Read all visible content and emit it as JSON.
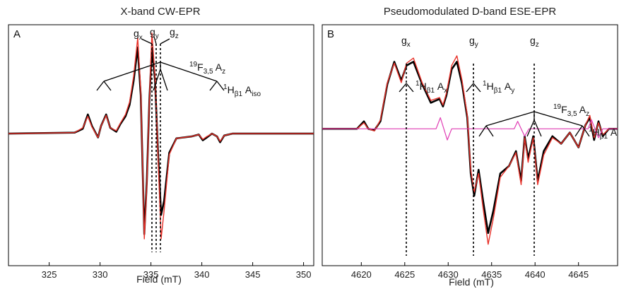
{
  "chart_data": [
    {
      "type": "line",
      "panel": "A",
      "title": "X-band CW-EPR",
      "xlabel": "Field (mT)",
      "ylabel": "",
      "xlim": [
        321,
        351
      ],
      "ylim": [
        -1.35,
        1.1
      ],
      "xticks": [
        325,
        330,
        335,
        340,
        345,
        350
      ],
      "grid": false,
      "series": [
        {
          "color": "#000000",
          "x": [
            321,
            327.5,
            328.3,
            328.8,
            329.2,
            329.8,
            330.1,
            330.6,
            331.0,
            331.6,
            332.0,
            332.5,
            332.9,
            333.3,
            333.7,
            334.0,
            334.35,
            334.6,
            334.85,
            335.1,
            335.4,
            335.7,
            336.0,
            336.3,
            336.8,
            337.5,
            339.0,
            339.7,
            340.1,
            340.5,
            341.0,
            341.5,
            341.8,
            342.2,
            343.0,
            351
          ],
          "y": [
            0,
            0.01,
            0.05,
            0.2,
            0.08,
            -0.04,
            0.08,
            0.2,
            0.06,
            0.02,
            0.1,
            0.18,
            0.3,
            0.55,
            0.9,
            0.4,
            -1.05,
            -0.5,
            0.35,
            0.9,
            0.55,
            -0.2,
            -0.85,
            -0.7,
            -0.2,
            -0.05,
            -0.03,
            -0.01,
            -0.07,
            -0.04,
            0.0,
            -0.03,
            -0.09,
            -0.02,
            0.0,
            0.0
          ]
        },
        {
          "color": "#e8322a",
          "x": [
            321,
            327.5,
            328.3,
            328.8,
            329.2,
            329.8,
            330.1,
            330.6,
            331.0,
            331.6,
            332.0,
            332.5,
            332.9,
            333.3,
            333.7,
            334.0,
            334.35,
            334.6,
            334.85,
            335.1,
            335.4,
            335.7,
            336.0,
            336.3,
            336.8,
            337.5,
            339.0,
            339.7,
            340.1,
            340.5,
            341.0,
            341.5,
            341.8,
            342.2,
            343.0,
            351
          ],
          "y": [
            0,
            0.01,
            0.06,
            0.18,
            0.07,
            -0.04,
            0.08,
            0.19,
            0.06,
            0.03,
            0.11,
            0.2,
            0.33,
            0.6,
            1.0,
            0.45,
            -1.1,
            -0.55,
            0.35,
            1.05,
            0.6,
            -0.25,
            -1.1,
            -0.8,
            -0.22,
            -0.05,
            -0.03,
            -0.01,
            -0.06,
            -0.03,
            0.0,
            -0.03,
            -0.08,
            -0.02,
            0.0,
            0.0
          ]
        }
      ]
    },
    {
      "type": "line",
      "panel": "B",
      "title": "Pseudomodulated D-band ESE-EPR",
      "xlabel": "Field (mT)",
      "ylabel": "",
      "xlim": [
        4615.5,
        4649.5
      ],
      "ylim": [
        -1.8,
        1.35
      ],
      "xticks": [
        4620,
        4625,
        4630,
        4635,
        4640,
        4645
      ],
      "grid": false,
      "series": [
        {
          "color": "#000000",
          "x": [
            4615.5,
            4619.5,
            4620.3,
            4620.8,
            4621.5,
            4622.2,
            4623.0,
            4623.8,
            4624.6,
            4625.2,
            4626.0,
            4627.0,
            4628.0,
            4629.0,
            4629.4,
            4629.8,
            4630.4,
            4631.0,
            4631.6,
            4632.2,
            4632.6,
            4633.0,
            4633.5,
            4634.0,
            4634.6,
            4635.2,
            4636.0,
            4637.0,
            4637.8,
            4638.4,
            4638.8,
            4639.2,
            4639.8,
            4640.3,
            4641.0,
            4642.0,
            4643.0,
            4644.0,
            4645.0,
            4645.8,
            4646.3,
            4646.8,
            4647.3,
            4647.8,
            4648.5,
            4649.5
          ],
          "y": [
            0,
            0.0,
            0.1,
            0.0,
            -0.02,
            0.1,
            0.6,
            0.9,
            0.65,
            0.85,
            0.9,
            0.6,
            0.35,
            0.4,
            0.3,
            0.45,
            0.8,
            0.9,
            0.6,
            0.15,
            -0.6,
            -0.9,
            -0.55,
            -0.95,
            -1.4,
            -1.1,
            -0.6,
            -0.5,
            -0.3,
            -0.7,
            -0.1,
            -0.4,
            -0.1,
            -0.7,
            -0.3,
            -0.1,
            -0.2,
            -0.05,
            -0.25,
            0.05,
            0.15,
            -0.15,
            0.1,
            -0.1,
            0.0,
            0.0
          ]
        },
        {
          "color": "#e8322a",
          "x": [
            4615.5,
            4619.5,
            4620.3,
            4620.8,
            4621.5,
            4622.2,
            4623.0,
            4623.8,
            4624.6,
            4625.2,
            4626.0,
            4627.0,
            4628.0,
            4629.0,
            4629.4,
            4629.8,
            4630.4,
            4631.0,
            4631.6,
            4632.2,
            4632.6,
            4633.0,
            4633.5,
            4634.0,
            4634.6,
            4635.2,
            4636.0,
            4637.0,
            4637.8,
            4638.4,
            4638.8,
            4639.2,
            4639.8,
            4640.3,
            4641.0,
            4642.0,
            4643.0,
            4644.0,
            4645.0,
            4645.8,
            4646.3,
            4646.8,
            4647.3,
            4647.8,
            4648.5,
            4649.5
          ],
          "y": [
            0,
            0.0,
            0.08,
            0.0,
            -0.03,
            0.12,
            0.62,
            0.88,
            0.62,
            0.88,
            0.95,
            0.62,
            0.38,
            0.42,
            0.32,
            0.48,
            0.85,
            0.98,
            0.65,
            0.18,
            -0.55,
            -0.85,
            -0.6,
            -1.05,
            -1.55,
            -1.2,
            -0.65,
            -0.5,
            -0.32,
            -0.75,
            -0.12,
            -0.45,
            -0.12,
            -0.75,
            -0.35,
            -0.12,
            -0.2,
            -0.05,
            -0.25,
            0.05,
            0.18,
            -0.12,
            0.08,
            -0.08,
            0.0,
            0.0
          ]
        },
        {
          "color": "#e03cb4",
          "x": [
            4615.5,
            4628.6,
            4629.1,
            4629.5,
            4629.9,
            4630.4,
            4637.6,
            4638.0,
            4638.4,
            4638.8,
            4639.3,
            4646.1,
            4646.5,
            4646.9,
            4647.3,
            4647.8,
            4649.5
          ],
          "y": [
            0,
            0,
            0.15,
            0,
            -0.15,
            0,
            0,
            0.1,
            0,
            -0.1,
            0,
            0,
            0.12,
            0,
            -0.12,
            0,
            0
          ]
        }
      ]
    }
  ],
  "annotations": {
    "a_gx": "g",
    "a_gx_sub": "x",
    "a_gy": "g",
    "a_gy_sub": "y",
    "a_gz": "g",
    "a_gz_sub": "z",
    "a_f_sup": "19",
    "a_f_main": "F",
    "a_f_sub": "3,5",
    "a_f_a": " A",
    "a_f_a_sub": "z",
    "a_h_sup": "1",
    "a_h_main": "H",
    "a_h_sub": "β1",
    "a_h_a": " A",
    "a_h_a_sub": "iso",
    "b_gx": "g",
    "b_gx_sub": "x",
    "b_gy": "g",
    "b_gy_sub": "y",
    "b_gz": "g",
    "b_gz_sub": "z",
    "b_hx_sup": "1",
    "b_hx_main": "H",
    "b_hx_sub": "β1",
    "b_hx_a": " A",
    "b_hx_a_sub": "x",
    "b_hy_sup": "1",
    "b_hy_main": "H",
    "b_hy_sub": "β1",
    "b_hy_a": " A",
    "b_hy_a_sub": "y",
    "b_f_sup": "19",
    "b_f_main": "F",
    "b_f_sub": "3,5",
    "b_f_a": " A",
    "b_f_a_sub": "z",
    "b_h_sup": "1",
    "b_h_main": "H",
    "b_h_sub": "β1",
    "b_h_a": " A"
  }
}
